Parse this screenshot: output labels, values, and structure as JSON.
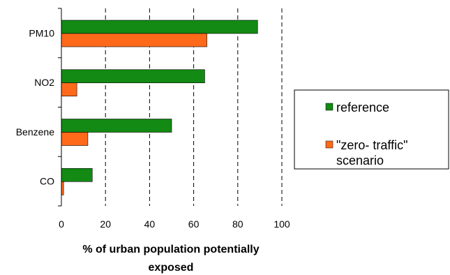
{
  "chart_data": {
    "type": "bar",
    "orientation": "horizontal",
    "categories": [
      "PM10",
      "NO2",
      "Benzene",
      "CO"
    ],
    "series": [
      {
        "name": "reference",
        "values": [
          89,
          65,
          50,
          14
        ],
        "color": "#138A13"
      },
      {
        "name_lines": [
          "\"zero- traffic\"",
          "scenario"
        ],
        "values": [
          66,
          7,
          12,
          1
        ],
        "color": "#FF6A1A"
      }
    ],
    "xlabel_lines": [
      "% of urban population potentially",
      "exposed"
    ],
    "xlim": [
      0,
      100
    ],
    "xticks": [
      "0",
      "20",
      "40",
      "60",
      "80",
      "100"
    ],
    "grid": "vertical dashed",
    "legend": "right"
  }
}
